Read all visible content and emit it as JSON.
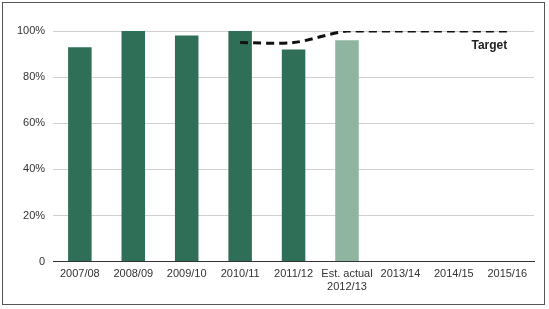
{
  "chart_data": {
    "type": "bar",
    "categories": [
      "2007/08",
      "2008/09",
      "2009/10",
      "2010/11",
      "2011/12",
      "Est. actual 2012/13",
      "2013/14",
      "2014/15",
      "2015/16"
    ],
    "values": [
      93,
      100,
      98,
      100,
      92,
      96,
      null,
      null,
      null
    ],
    "colors": [
      "#2f6f58",
      "#2f6f58",
      "#2f6f58",
      "#2f6f58",
      "#2f6f58",
      "#8fb5a1",
      "#2f6f58",
      "#2f6f58",
      "#2f6f58"
    ],
    "series": [
      {
        "name": "Target",
        "type": "line",
        "line_style": "dashed",
        "color": "#111111",
        "values": [
          null,
          null,
          null,
          95,
          95,
          100,
          100,
          100,
          100
        ]
      }
    ],
    "ylim": [
      0,
      100
    ],
    "yticks": [
      0,
      {
        "value": 20,
        "label": "20%"
      },
      {
        "value": 40,
        "label": "40%"
      },
      {
        "value": 60,
        "label": "60%"
      },
      {
        "value": 80,
        "label": "80%"
      },
      {
        "value": 100,
        "label": "100%"
      }
    ],
    "grid": true
  }
}
